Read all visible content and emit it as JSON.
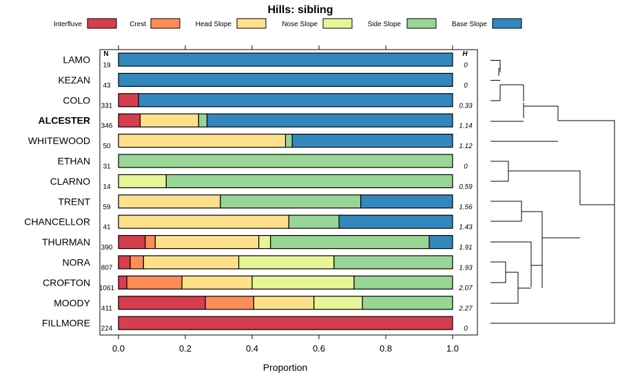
{
  "chart_data": {
    "type": "bar",
    "stacked": true,
    "orientation": "horizontal",
    "title": "Hills: sibling",
    "xlabel": "Proportion",
    "xlim": [
      0,
      1
    ],
    "xticks": [
      "0.0",
      "0.2",
      "0.4",
      "0.6",
      "0.8",
      "1.0"
    ],
    "n_header": "N",
    "h_header": "H",
    "legend": [
      {
        "name": "Interfluve",
        "color": "#d53e4f"
      },
      {
        "name": "Crest",
        "color": "#fc8d59"
      },
      {
        "name": "Head Slope",
        "color": "#fee08b"
      },
      {
        "name": "Nose Slope",
        "color": "#e6f598"
      },
      {
        "name": "Side Slope",
        "color": "#99d594"
      },
      {
        "name": "Base Slope",
        "color": "#3288bd"
      }
    ],
    "rows": [
      {
        "name": "LAMO",
        "n": "19",
        "h": "0",
        "bold": false,
        "values": [
          0,
          0,
          0,
          0,
          0,
          1.0
        ]
      },
      {
        "name": "KEZAN",
        "n": "43",
        "h": "0",
        "bold": false,
        "values": [
          0,
          0,
          0,
          0,
          0,
          1.0
        ]
      },
      {
        "name": "COLO",
        "n": "331",
        "h": "0.33",
        "bold": false,
        "values": [
          0.06,
          0,
          0,
          0,
          0,
          0.94
        ]
      },
      {
        "name": "ALCESTER",
        "n": "346",
        "h": "1.14",
        "bold": true,
        "values": [
          0.065,
          0,
          0.175,
          0,
          0.025,
          0.735
        ]
      },
      {
        "name": "WHITEWOOD",
        "n": "50",
        "h": "1.12",
        "bold": false,
        "values": [
          0,
          0,
          0.5,
          0,
          0.02,
          0.48
        ]
      },
      {
        "name": "ETHAN",
        "n": "31",
        "h": "0",
        "bold": false,
        "values": [
          0,
          0,
          0,
          0,
          1.0,
          0
        ]
      },
      {
        "name": "CLARNO",
        "n": "14",
        "h": "0.59",
        "bold": false,
        "values": [
          0,
          0,
          0,
          0.143,
          0.857,
          0
        ]
      },
      {
        "name": "TRENT",
        "n": "59",
        "h": "1.56",
        "bold": false,
        "values": [
          0,
          0,
          0.305,
          0,
          0.42,
          0.275
        ]
      },
      {
        "name": "CHANCELLOR",
        "n": "41",
        "h": "1.43",
        "bold": false,
        "values": [
          0,
          0,
          0.51,
          0,
          0.15,
          0.34
        ]
      },
      {
        "name": "THURMAN",
        "n": "390",
        "h": "1.91",
        "bold": false,
        "values": [
          0.08,
          0.03,
          0.31,
          0.035,
          0.475,
          0.07
        ]
      },
      {
        "name": "NORA",
        "n": "807",
        "h": "1.93",
        "bold": false,
        "values": [
          0.035,
          0.04,
          0.285,
          0.285,
          0.355,
          0
        ]
      },
      {
        "name": "CROFTON",
        "n": "1061",
        "h": "2.07",
        "bold": false,
        "values": [
          0.025,
          0.165,
          0.21,
          0.305,
          0.295,
          0
        ]
      },
      {
        "name": "MOODY",
        "n": "411",
        "h": "2.27",
        "bold": false,
        "values": [
          0.26,
          0.145,
          0.18,
          0.145,
          0.27,
          0
        ]
      },
      {
        "name": "FILLMORE",
        "n": "224",
        "h": "0",
        "bold": false,
        "values": [
          1.0,
          0,
          0,
          0,
          0,
          0
        ]
      }
    ],
    "dendrogram_note": "hierarchical clustering of rows (LAMO, KEZAN, COLO, ALCESTER, WHITEWOOD) (ETHAN, CLARNO, TRENT, CHANCELLOR, THURMAN, NORA, CROFTON, MOODY) FILLMORE"
  }
}
